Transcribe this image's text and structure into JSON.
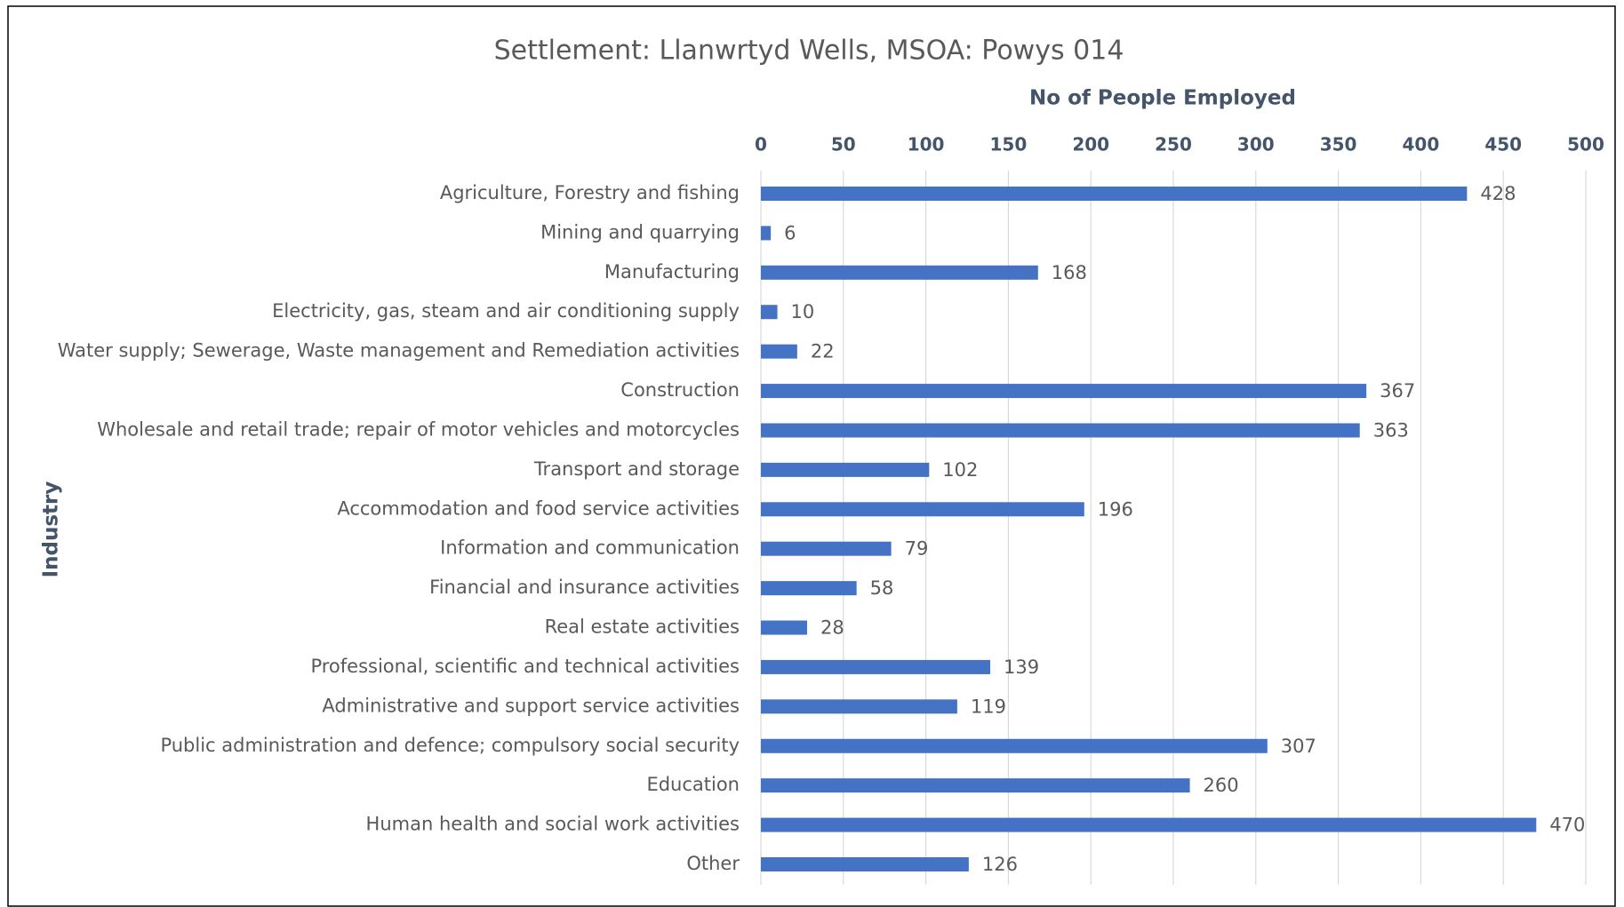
{
  "chart_data": {
    "type": "bar",
    "orientation": "horizontal",
    "title": "Settlement: Llanwrtyd Wells,  MSOA: Powys 014",
    "x_label": "No of People Employed",
    "y_label": "Industry",
    "categories": [
      "Agriculture, Forestry and fishing",
      "Mining and quarrying",
      "Manufacturing",
      "Electricity, gas, steam and air conditioning supply",
      "Water supply; Sewerage, Waste management and Remediation activities",
      "Construction",
      "Wholesale and retail trade; repair of motor vehicles and motorcycles",
      "Transport and storage",
      "Accommodation and food service activities",
      "Information and communication",
      "Financial and insurance activities",
      "Real estate activities",
      "Professional, scientific and technical activities",
      "Administrative and support service activities",
      "Public administration and defence; compulsory social security",
      "Education",
      "Human health and social work activities",
      "Other"
    ],
    "values": [
      428,
      6,
      168,
      10,
      22,
      367,
      363,
      102,
      196,
      79,
      58,
      28,
      139,
      119,
      307,
      260,
      470,
      126
    ],
    "color": "#4472c4",
    "xlim": [
      0,
      500
    ],
    "xticks": [
      0,
      50,
      100,
      150,
      200,
      250,
      300,
      350,
      400,
      450,
      500
    ],
    "grid": true,
    "data_labels": true
  }
}
